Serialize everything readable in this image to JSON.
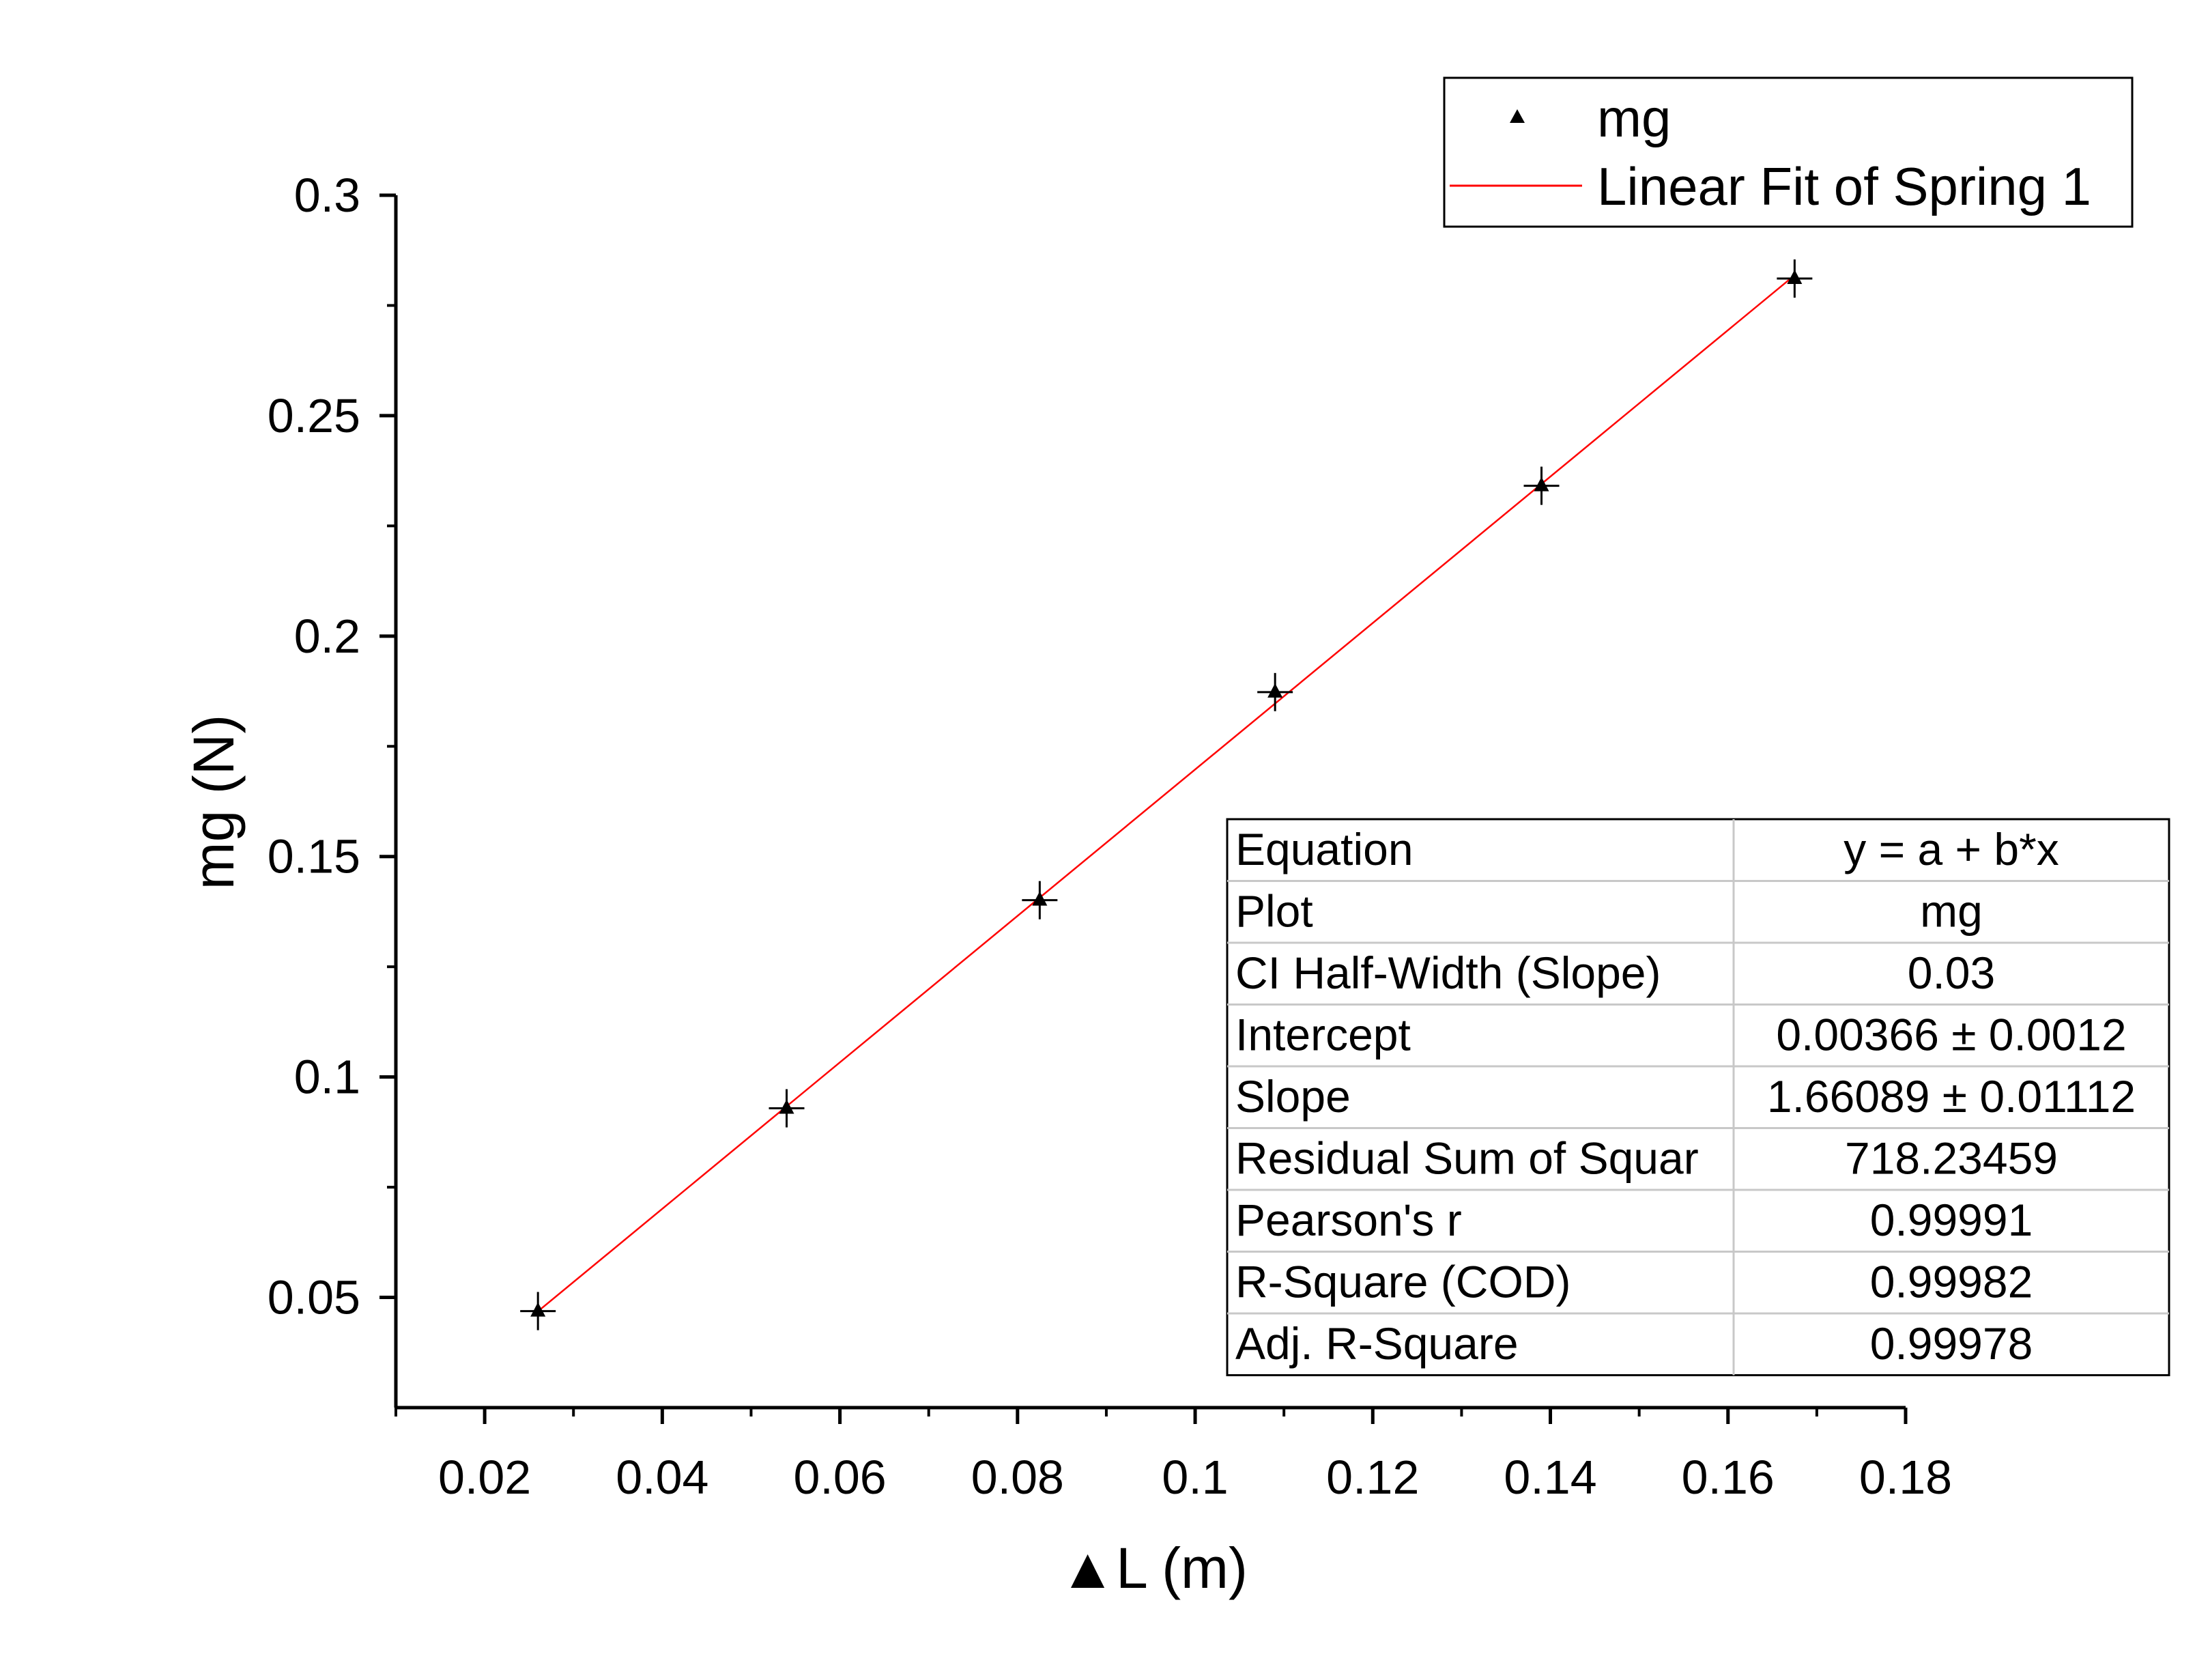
{
  "chart_data": {
    "type": "scatter",
    "xlabel": "▲L (m)",
    "ylabel": "mg (N)",
    "xlim": [
      0.01,
      0.18
    ],
    "ylim": [
      0.025,
      0.3
    ],
    "x_ticks": [
      0.02,
      0.04,
      0.06,
      0.08,
      0.1,
      0.12,
      0.14,
      0.16,
      0.18
    ],
    "x_tick_labels": [
      "0.02",
      "0.04",
      "0.06",
      "0.08",
      "0.1",
      "0.12",
      "0.14",
      "0.16",
      "0.18"
    ],
    "y_ticks": [
      0.05,
      0.1,
      0.15,
      0.2,
      0.25,
      0.3
    ],
    "y_tick_labels": [
      "0.05",
      "0.1",
      "0.15",
      "0.2",
      "0.25",
      "0.3"
    ],
    "grid": false,
    "legend_position": "top-right",
    "series": [
      {
        "name": "mg",
        "marker": "triangle",
        "color": "#000000",
        "x": [
          0.026,
          0.054,
          0.0825,
          0.109,
          0.139,
          0.1675
        ],
        "y": [
          0.0469,
          0.0929,
          0.1401,
          0.1873,
          0.2341,
          0.2811
        ]
      }
    ],
    "fit": {
      "name": "Linear Fit of Spring 1",
      "color": "#ff0000",
      "intercept": 0.00366,
      "slope": 1.66089,
      "x_range": [
        0.026,
        0.1675
      ]
    },
    "stats_table": {
      "rows": [
        {
          "label": "Equation",
          "value": "y = a + b*x"
        },
        {
          "label": "Plot",
          "value": "mg"
        },
        {
          "label": "CI Half-Width (Slope)",
          "value": "0.03"
        },
        {
          "label": "Intercept",
          "value": "0.00366 ± 0.0012"
        },
        {
          "label": "Slope",
          "value": "1.66089 ± 0.01112"
        },
        {
          "label": "Residual Sum of Squar",
          "value": "718.23459"
        },
        {
          "label": "Pearson's r",
          "value": "0.99991"
        },
        {
          "label": "R-Square (COD)",
          "value": "0.99982"
        },
        {
          "label": "Adj. R-Square",
          "value": "0.99978"
        }
      ]
    }
  }
}
